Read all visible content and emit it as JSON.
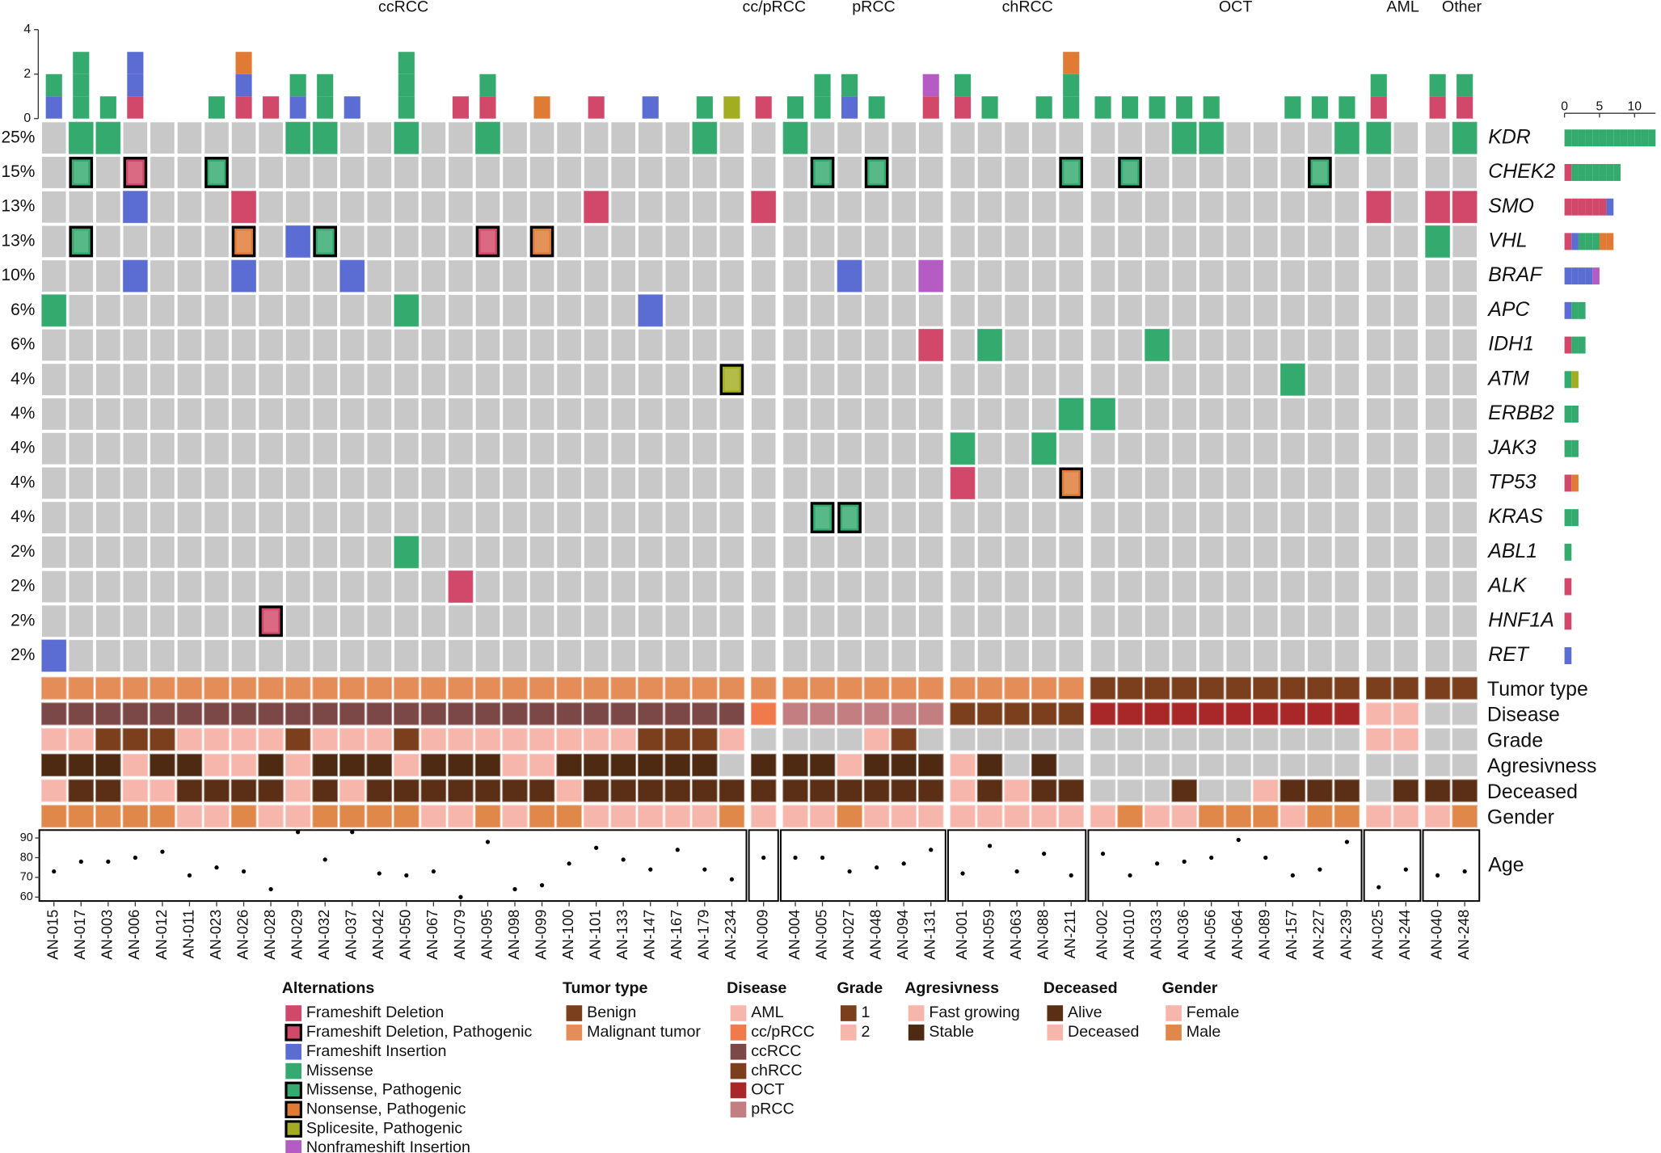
{
  "chart_data": {
    "type": "oncoprint",
    "groups": [
      {
        "name": "ccRCC",
        "samples": [
          "AN-015",
          "AN-017",
          "AN-003",
          "AN-006",
          "AN-012",
          "AN-011",
          "AN-023",
          "AN-026",
          "AN-028",
          "AN-029",
          "AN-032",
          "AN-037",
          "AN-042",
          "AN-050",
          "AN-067",
          "AN-079",
          "AN-095",
          "AN-098",
          "AN-099",
          "AN-100",
          "AN-101",
          "AN-133",
          "AN-147",
          "AN-167",
          "AN-179",
          "AN-234"
        ]
      },
      {
        "name": "cc/pRCC",
        "samples": [
          "AN-009"
        ]
      },
      {
        "name": "pRCC",
        "samples": [
          "AN-004",
          "AN-005",
          "AN-027",
          "AN-048",
          "AN-094",
          "AN-131"
        ]
      },
      {
        "name": "chRCC",
        "samples": [
          "AN-001",
          "AN-059",
          "AN-063",
          "AN-088",
          "AN-211"
        ]
      },
      {
        "name": "OCT",
        "samples": [
          "AN-002",
          "AN-010",
          "AN-033",
          "AN-036",
          "AN-056",
          "AN-064",
          "AN-089",
          "AN-157",
          "AN-227",
          "AN-239"
        ]
      },
      {
        "name": "AML",
        "samples": [
          "AN-025",
          "AN-244"
        ]
      },
      {
        "name": "Other",
        "samples": [
          "AN-040",
          "AN-248"
        ]
      }
    ],
    "na_color": "#c8c8c8",
    "alteration_legend": {
      "title": "Alternations",
      "items": [
        {
          "label": "Frameshift Deletion",
          "color": "#d2486a",
          "pathogenic": false
        },
        {
          "label": "Frameshift Deletion, Pathogenic",
          "color": "#d2486a",
          "pathogenic": true
        },
        {
          "label": "Frameshift Insertion",
          "color": "#5b6dd2",
          "pathogenic": false
        },
        {
          "label": "Missense",
          "color": "#34aa6e",
          "pathogenic": false
        },
        {
          "label": "Missense, Pathogenic",
          "color": "#34aa6e",
          "pathogenic": true
        },
        {
          "label": "Nonsense, Pathogenic",
          "color": "#e07b36",
          "pathogenic": true
        },
        {
          "label": "Splicesite, Pathogenic",
          "color": "#a3ad22",
          "pathogenic": true
        },
        {
          "label": "Nonframeshift Insertion",
          "color": "#b45bc4",
          "pathogenic": false
        }
      ]
    },
    "genes": [
      {
        "name": "KDR",
        "frequency": "25%",
        "alterations": {
          "AN-017": "Missense",
          "AN-003": "Missense",
          "AN-029": "Missense",
          "AN-032": "Missense",
          "AN-050": "Missense",
          "AN-095": "Missense",
          "AN-179": "Missense",
          "AN-004": "Missense",
          "AN-036": "Missense",
          "AN-056": "Missense",
          "AN-239": "Missense",
          "AN-025": "Missense",
          "AN-248": "Missense"
        }
      },
      {
        "name": "CHEK2",
        "frequency": "15%",
        "alterations": {
          "AN-017": "Missense, Pathogenic",
          "AN-006": "Frameshift Deletion, Pathogenic",
          "AN-023": "Missense, Pathogenic",
          "AN-005": "Missense, Pathogenic",
          "AN-048": "Missense, Pathogenic",
          "AN-211": "Missense, Pathogenic",
          "AN-010": "Missense, Pathogenic",
          "AN-227": "Missense, Pathogenic"
        }
      },
      {
        "name": "SMO",
        "frequency": "13%",
        "alterations": {
          "AN-006": "Frameshift Insertion",
          "AN-026": "Frameshift Deletion",
          "AN-101": "Frameshift Deletion",
          "AN-009": "Frameshift Deletion",
          "AN-025": "Frameshift Deletion",
          "AN-040": "Frameshift Deletion",
          "AN-248": "Frameshift Deletion"
        }
      },
      {
        "name": "VHL",
        "frequency": "13%",
        "alterations": {
          "AN-017": "Missense, Pathogenic",
          "AN-026": "Nonsense, Pathogenic",
          "AN-029": "Frameshift Insertion",
          "AN-032": "Missense, Pathogenic",
          "AN-095": "Frameshift Deletion, Pathogenic",
          "AN-099": "Nonsense, Pathogenic",
          "AN-040": "Missense"
        }
      },
      {
        "name": "BRAF",
        "frequency": "10%",
        "alterations": {
          "AN-006": "Frameshift Insertion",
          "AN-026": "Frameshift Insertion",
          "AN-037": "Frameshift Insertion",
          "AN-027": "Frameshift Insertion",
          "AN-131": "Nonframeshift Insertion"
        }
      },
      {
        "name": "APC",
        "frequency": "6%",
        "alterations": {
          "AN-015": "Missense",
          "AN-050": "Missense",
          "AN-147": "Frameshift Insertion"
        }
      },
      {
        "name": "IDH1",
        "frequency": "6%",
        "alterations": {
          "AN-131": "Frameshift Deletion",
          "AN-059": "Missense",
          "AN-033": "Missense"
        }
      },
      {
        "name": "ATM",
        "frequency": "4%",
        "alterations": {
          "AN-234": "Splicesite, Pathogenic",
          "AN-157": "Missense"
        }
      },
      {
        "name": "ERBB2",
        "frequency": "4%",
        "alterations": {
          "AN-211": "Missense",
          "AN-002": "Missense"
        }
      },
      {
        "name": "JAK3",
        "frequency": "4%",
        "alterations": {
          "AN-001": "Missense",
          "AN-088": "Missense"
        }
      },
      {
        "name": "TP53",
        "frequency": "4%",
        "alterations": {
          "AN-001": "Frameshift Deletion",
          "AN-211": "Nonsense, Pathogenic"
        }
      },
      {
        "name": "KRAS",
        "frequency": "4%",
        "alterations": {
          "AN-005": "Missense, Pathogenic",
          "AN-027": "Missense, Pathogenic"
        }
      },
      {
        "name": "ABL1",
        "frequency": "2%",
        "alterations": {
          "AN-050": "Missense"
        }
      },
      {
        "name": "ALK",
        "frequency": "2%",
        "alterations": {
          "AN-079": "Frameshift Deletion"
        }
      },
      {
        "name": "HNF1A",
        "frequency": "2%",
        "alterations": {
          "AN-028": "Frameshift Deletion, Pathogenic"
        }
      },
      {
        "name": "RET",
        "frequency": "2%",
        "alterations": {
          "AN-015": "Frameshift Insertion"
        }
      }
    ],
    "top_bar": {
      "ylim": [
        0,
        4
      ],
      "yticks": [
        0,
        2,
        4
      ]
    },
    "side_bar": {
      "xlim": [
        0,
        13
      ],
      "xticks": [
        0,
        5,
        10
      ]
    },
    "tracks": [
      {
        "name": "Tumor type",
        "legend_title": "Tumor type",
        "items": [
          {
            "label": "Benign",
            "color": "#7b3f1e"
          },
          {
            "label": "Malignant tumor",
            "color": "#e58d58"
          }
        ],
        "values": [
          "Malignant tumor",
          "Malignant tumor",
          "Malignant tumor",
          "Malignant tumor",
          "Malignant tumor",
          "Malignant tumor",
          "Malignant tumor",
          "Malignant tumor",
          "Malignant tumor",
          "Malignant tumor",
          "Malignant tumor",
          "Malignant tumor",
          "Malignant tumor",
          "Malignant tumor",
          "Malignant tumor",
          "Malignant tumor",
          "Malignant tumor",
          "Malignant tumor",
          "Malignant tumor",
          "Malignant tumor",
          "Malignant tumor",
          "Malignant tumor",
          "Malignant tumor",
          "Malignant tumor",
          "Malignant tumor",
          "Malignant tumor",
          "Malignant tumor",
          "Malignant tumor",
          "Malignant tumor",
          "Malignant tumor",
          "Malignant tumor",
          "Malignant tumor",
          "Malignant tumor",
          "Malignant tumor",
          "Malignant tumor",
          "Malignant tumor",
          "Malignant tumor",
          "Malignant tumor",
          "Benign",
          "Benign",
          "Benign",
          "Benign",
          "Benign",
          "Benign",
          "Benign",
          "Benign",
          "Benign",
          "Benign",
          "Benign",
          "Benign",
          "Benign",
          "Benign"
        ]
      },
      {
        "name": "Disease",
        "legend_title": "Disease",
        "items": [
          {
            "label": "AML",
            "color": "#f7b6ac"
          },
          {
            "label": "cc/pRCC",
            "color": "#f07a4c"
          },
          {
            "label": "ccRCC",
            "color": "#7c4747"
          },
          {
            "label": "chRCC",
            "color": "#7b3f1e"
          },
          {
            "label": "OCT",
            "color": "#a8282a"
          },
          {
            "label": "pRCC",
            "color": "#c27e80"
          }
        ],
        "values": [
          "ccRCC",
          "ccRCC",
          "ccRCC",
          "ccRCC",
          "ccRCC",
          "ccRCC",
          "ccRCC",
          "ccRCC",
          "ccRCC",
          "ccRCC",
          "ccRCC",
          "ccRCC",
          "ccRCC",
          "ccRCC",
          "ccRCC",
          "ccRCC",
          "ccRCC",
          "ccRCC",
          "ccRCC",
          "ccRCC",
          "ccRCC",
          "ccRCC",
          "ccRCC",
          "ccRCC",
          "ccRCC",
          "ccRCC",
          "cc/pRCC",
          "pRCC",
          "pRCC",
          "pRCC",
          "pRCC",
          "pRCC",
          "pRCC",
          "chRCC",
          "chRCC",
          "chRCC",
          "chRCC",
          "chRCC",
          "OCT",
          "OCT",
          "OCT",
          "OCT",
          "OCT",
          "OCT",
          "OCT",
          "OCT",
          "OCT",
          "OCT",
          "AML",
          "AML",
          null,
          null
        ]
      },
      {
        "name": "Grade",
        "legend_title": "Grade",
        "items": [
          {
            "label": "1",
            "color": "#7b3f1e"
          },
          {
            "label": "2",
            "color": "#f7b6ac"
          }
        ],
        "values": [
          "2",
          "2",
          "1",
          "1",
          "1",
          "2",
          "2",
          "2",
          "2",
          "1",
          "2",
          "2",
          "2",
          "1",
          "2",
          "2",
          "2",
          "2",
          "2",
          "2",
          "2",
          "2",
          "1",
          "1",
          "1",
          "2",
          null,
          null,
          null,
          null,
          "2",
          "1",
          null,
          null,
          null,
          null,
          null,
          null,
          null,
          null,
          null,
          null,
          null,
          null,
          null,
          null,
          null,
          null,
          "2",
          "2",
          null,
          null
        ]
      },
      {
        "name": "Agresivness",
        "legend_title": "Agresivness",
        "items": [
          {
            "label": "Fast growing",
            "color": "#f7b6ac"
          },
          {
            "label": "Stable",
            "color": "#4f2a12"
          }
        ],
        "values": [
          "Stable",
          "Stable",
          "Stable",
          "Fast growing",
          "Stable",
          "Stable",
          "Fast growing",
          "Fast growing",
          "Stable",
          "Fast growing",
          "Stable",
          "Stable",
          "Stable",
          "Fast growing",
          "Stable",
          "Stable",
          "Stable",
          "Fast growing",
          "Fast growing",
          "Stable",
          "Stable",
          "Stable",
          "Stable",
          "Stable",
          "Stable",
          null,
          "Stable",
          "Stable",
          "Stable",
          "Fast growing",
          "Stable",
          "Stable",
          "Stable",
          "Fast growing",
          "Stable",
          null,
          "Stable",
          null,
          null,
          null,
          null,
          null,
          null,
          null,
          null,
          null,
          null,
          null,
          null,
          null,
          null,
          null
        ]
      },
      {
        "name": "Deceased",
        "legend_title": "Deceased",
        "items": [
          {
            "label": "Alive",
            "color": "#5a2f15"
          },
          {
            "label": "Deceased",
            "color": "#f7b6ac"
          }
        ],
        "values": [
          "Deceased",
          "Alive",
          "Alive",
          "Deceased",
          "Deceased",
          "Alive",
          "Alive",
          "Alive",
          "Alive",
          "Deceased",
          "Alive",
          "Deceased",
          "Alive",
          "Alive",
          "Alive",
          "Alive",
          "Alive",
          "Alive",
          "Alive",
          "Deceased",
          "Alive",
          "Alive",
          "Alive",
          "Alive",
          "Alive",
          "Alive",
          "Alive",
          "Alive",
          "Alive",
          "Alive",
          "Alive",
          "Alive",
          "Alive",
          "Deceased",
          "Alive",
          "Deceased",
          "Alive",
          "Alive",
          null,
          null,
          null,
          "Alive",
          null,
          null,
          "Deceased",
          "Alive",
          "Alive",
          "Alive",
          null,
          "Alive",
          "Alive",
          "Alive"
        ]
      },
      {
        "name": "Gender",
        "legend_title": "Gender",
        "items": [
          {
            "label": "Female",
            "color": "#f7b6ac"
          },
          {
            "label": "Male",
            "color": "#e0874a"
          }
        ],
        "values": [
          "Male",
          "Male",
          "Male",
          "Male",
          "Male",
          "Female",
          "Female",
          "Male",
          "Female",
          "Female",
          "Male",
          "Male",
          "Male",
          "Male",
          "Female",
          "Female",
          "Male",
          "Female",
          "Male",
          "Male",
          "Female",
          "Female",
          "Female",
          "Female",
          "Female",
          "Male",
          "Female",
          "Female",
          "Female",
          "Male",
          "Female",
          "Female",
          "Female",
          "Female",
          "Female",
          "Female",
          "Female",
          "Female",
          "Female",
          "Male",
          "Female",
          "Female",
          "Male",
          "Male",
          "Male",
          "Female",
          "Male",
          "Male",
          "Female",
          "Female",
          "Female",
          "Male"
        ]
      }
    ],
    "age": {
      "name": "Age",
      "ylim": [
        58,
        94
      ],
      "yticks": [
        60,
        70,
        80,
        90
      ],
      "values": [
        73,
        78,
        78,
        80,
        83,
        71,
        75,
        73,
        64,
        93,
        79,
        93,
        72,
        71,
        73,
        60,
        88,
        64,
        66,
        77,
        85,
        79,
        74,
        84,
        74,
        69,
        80,
        80,
        80,
        73,
        75,
        77,
        84,
        72,
        86,
        73,
        82,
        71,
        82,
        71,
        77,
        78,
        80,
        89,
        80,
        71,
        74,
        88,
        65,
        74,
        71,
        73
      ]
    }
  }
}
